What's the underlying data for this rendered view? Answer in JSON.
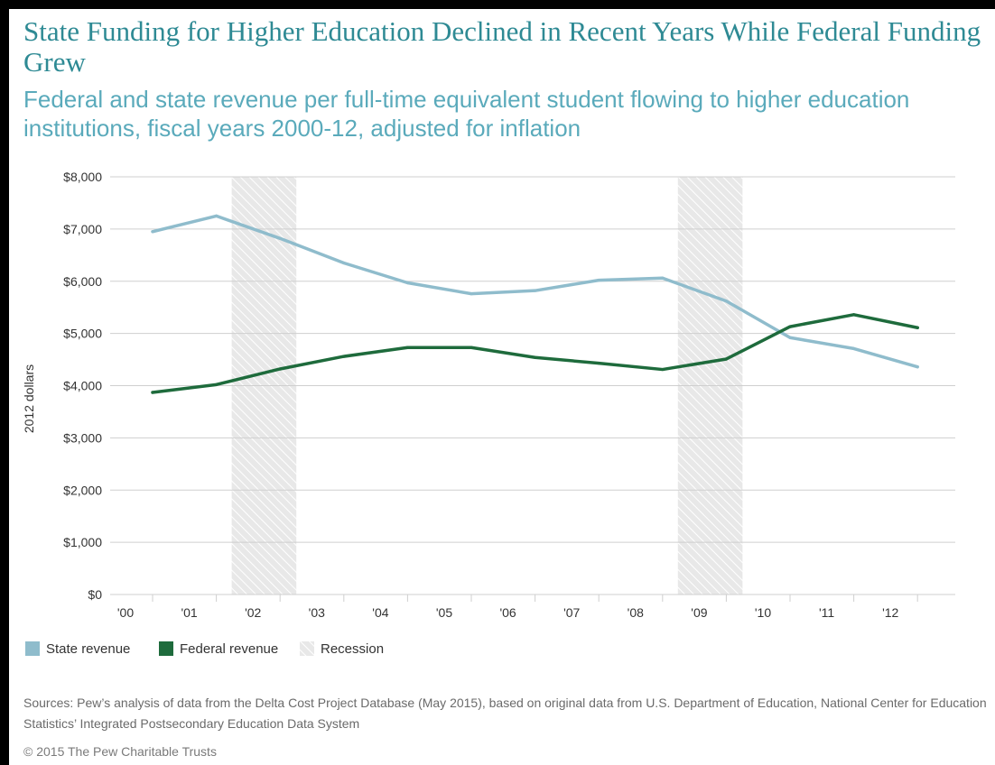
{
  "title": "State Funding for Higher Education Declined in Recent Years While Federal Funding Grew",
  "subtitle": "Federal and state revenue per full-time equivalent student flowing to higher education institutions, fiscal years 2000-12, adjusted for inflation",
  "sources": "Sources: Pew’s analysis of data from the Delta Cost Project Database (May 2015), based on original data from U.S. Department of Education, National Center for Education Statistics’ Integrated Postsecondary Education Data System",
  "copyright": "© 2015 The Pew Charitable Trusts",
  "colors": {
    "state": "#8fbccc",
    "federal": "#1e6b3c",
    "recession": "#e3e3e3",
    "title": "#2e8a94",
    "subtitle": "#5aaabb"
  },
  "legend": {
    "state": "State revenue",
    "federal": "Federal revenue",
    "recession": "Recession"
  },
  "chart_data": {
    "type": "line",
    "title": "",
    "xlabel": "",
    "ylabel": "2012 dollars",
    "x": [
      "'00",
      "'01",
      "'02",
      "'03",
      "'04",
      "'05",
      "'06",
      "'07",
      "'08",
      "'09",
      "'10",
      "'11",
      "'12"
    ],
    "ylim": [
      0,
      8000
    ],
    "yticks": [
      0,
      1000,
      2000,
      3000,
      4000,
      5000,
      6000,
      7000,
      8000
    ],
    "ytick_labels": [
      "$0",
      "$1,000",
      "$2,000",
      "$3,000",
      "$4,000",
      "$5,000",
      "$6,000",
      "$7,000",
      "$8,000"
    ],
    "grid": true,
    "legend_position": "bottom",
    "series": [
      {
        "name": "State revenue",
        "color": "#8fbccc",
        "values": [
          6950,
          7250,
          6820,
          6350,
          5970,
          5760,
          5820,
          6020,
          6060,
          5620,
          4920,
          4710,
          4360
        ]
      },
      {
        "name": "Federal revenue",
        "color": "#1e6b3c",
        "values": [
          3870,
          4020,
          4320,
          4560,
          4730,
          4730,
          4540,
          4430,
          4310,
          4510,
          5130,
          5360,
          5110
        ]
      }
    ],
    "recessions": [
      {
        "from": "'01",
        "to": "'02",
        "label": "Recession"
      },
      {
        "from": "'08",
        "to": "'09",
        "label": "Recession"
      }
    ]
  }
}
